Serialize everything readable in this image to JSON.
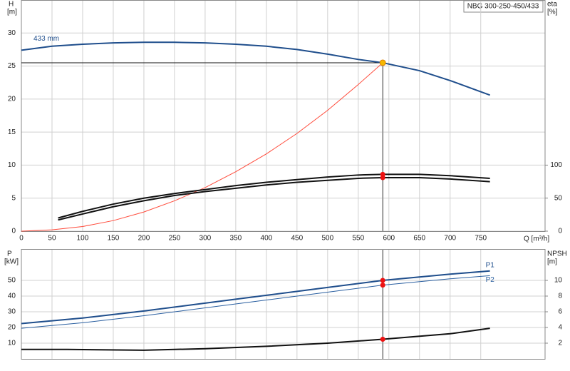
{
  "chart_data": [
    {
      "type": "line",
      "title": "NBG 300-250-450/433",
      "y_label": "H",
      "y_unit": "[m]",
      "y2_label": "eta",
      "y2_unit": "[%]",
      "x_label": "Q [m³/h]",
      "xlim": [
        0,
        855
      ],
      "xticks": [
        0,
        50,
        100,
        150,
        200,
        250,
        300,
        350,
        400,
        450,
        500,
        550,
        600,
        650,
        700,
        750
      ],
      "ylim": [
        0,
        35
      ],
      "yticks": [
        0,
        5,
        10,
        15,
        20,
        25,
        30
      ],
      "y2lim": [
        0,
        350
      ],
      "y2ticks": [
        0,
        50,
        100
      ],
      "grid": true,
      "duty_point": {
        "x": 590,
        "y": 25.5,
        "color": "#f5b800"
      },
      "series": [
        {
          "name": "433 mm",
          "color": "#1f4e8c",
          "x": [
            0,
            50,
            100,
            150,
            200,
            250,
            300,
            350,
            400,
            450,
            500,
            550,
            590,
            650,
            700,
            765
          ],
          "values": [
            27.4,
            28.0,
            28.3,
            28.5,
            28.6,
            28.6,
            28.5,
            28.3,
            28.0,
            27.5,
            26.8,
            26.0,
            25.5,
            24.3,
            22.8,
            20.6
          ]
        },
        {
          "color": "#ff4a3a",
          "x": [
            0,
            50,
            100,
            150,
            200,
            250,
            300,
            350,
            400,
            450,
            500,
            550,
            590
          ],
          "values": [
            0,
            0.2,
            0.7,
            1.6,
            2.9,
            4.6,
            6.6,
            9.0,
            11.7,
            14.8,
            18.3,
            22.2,
            25.5
          ]
        },
        {
          "color": "#111111",
          "axis": "y2",
          "x": [
            60,
            100,
            150,
            200,
            250,
            300,
            350,
            400,
            450,
            500,
            550,
            590,
            650,
            700,
            765
          ],
          "values": [
            20,
            30,
            41,
            50,
            57,
            63,
            69,
            74,
            78,
            82,
            85,
            86,
            86,
            84,
            80
          ]
        },
        {
          "color": "#111111",
          "axis": "y2",
          "x": [
            60,
            100,
            150,
            200,
            250,
            300,
            350,
            400,
            450,
            500,
            550,
            590,
            650,
            700,
            765
          ],
          "values": [
            17,
            26,
            37,
            46,
            54,
            60,
            65,
            70,
            74,
            77,
            80,
            81,
            81,
            79,
            75
          ]
        }
      ]
    },
    {
      "type": "line",
      "y_label": "P",
      "y_unit": "[kW]",
      "y2_label": "NPSH",
      "y2_unit": "[m]",
      "xlim": [
        0,
        855
      ],
      "ylim": [
        0,
        70
      ],
      "yticks": [
        10,
        20,
        30,
        40,
        50
      ],
      "y2lim": [
        0,
        14
      ],
      "y2ticks": [
        2,
        4,
        6,
        8,
        10
      ],
      "grid": true,
      "series": [
        {
          "name": "P1",
          "color": "#1f4e8c",
          "x": [
            0,
            100,
            200,
            300,
            400,
            500,
            590,
            700,
            765
          ],
          "values": [
            22.5,
            26,
            30.5,
            35.5,
            40.5,
            45.5,
            50,
            54,
            56
          ]
        },
        {
          "name": "P2",
          "color": "#2a5fa0",
          "x": [
            0,
            100,
            200,
            300,
            400,
            500,
            590,
            700,
            765
          ],
          "values": [
            19.5,
            23,
            27.5,
            32.5,
            37.5,
            42.5,
            47,
            51,
            53
          ]
        },
        {
          "color": "#111111",
          "axis": "y2",
          "x": [
            0,
            75,
            200,
            300,
            400,
            500,
            590,
            700,
            765
          ],
          "values": [
            1.2,
            1.2,
            1.1,
            1.3,
            1.6,
            2.0,
            2.5,
            3.2,
            3.9
          ]
        }
      ]
    }
  ]
}
